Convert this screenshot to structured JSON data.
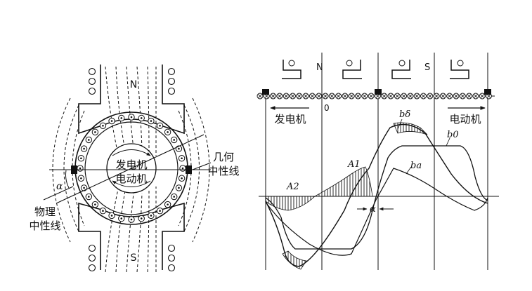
{
  "left_diagram": {
    "pole_top": "N",
    "pole_bottom": "S",
    "center_label_1": "发电机",
    "center_label_2": "电动机",
    "geometric_neutral_1": "几何",
    "geometric_neutral_2": "中性线",
    "physical_neutral_1": "物理",
    "physical_neutral_2": "中性线",
    "angle": "α"
  },
  "right_diagram": {
    "pole_n": "N",
    "pole_s": "S",
    "origin": "0",
    "generator": "发电机",
    "motor": "电动机",
    "b_delta": "bδ",
    "b_0": "b0",
    "b_a": "ba",
    "a_1": "A1",
    "a_2": "A2",
    "angle": "α"
  }
}
